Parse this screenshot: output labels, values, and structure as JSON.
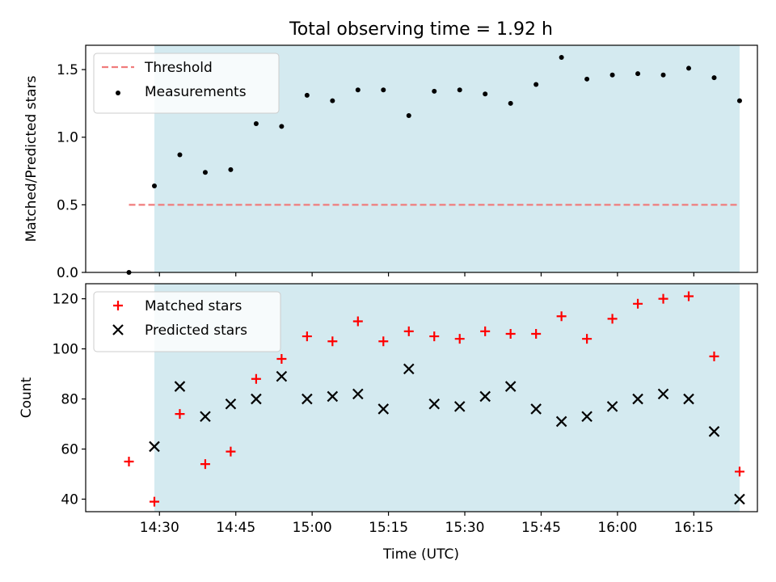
{
  "chart_data": {
    "title": "Total observing time = 1.92 h",
    "type": "scatter",
    "xlabel": "Time (UTC)",
    "x_ticks": [
      "14:30",
      "14:45",
      "15:00",
      "15:15",
      "15:30",
      "15:45",
      "16:00",
      "16:15"
    ],
    "x_tick_minutes": [
      870,
      885,
      900,
      915,
      930,
      945,
      960,
      975
    ],
    "xlim_minutes": [
      855.5,
      987.5
    ],
    "x_times": [
      "14:24",
      "14:29",
      "14:34",
      "14:39",
      "14:44",
      "14:49",
      "14:54",
      "14:59",
      "15:04",
      "15:09",
      "15:14",
      "15:19",
      "15:24",
      "15:29",
      "15:34",
      "15:39",
      "15:44",
      "15:49",
      "15:54",
      "15:59",
      "16:04",
      "16:09",
      "16:14",
      "16:19",
      "16:24"
    ],
    "shaded_span": {
      "start": "14:29",
      "end": "16:24",
      "color": "#d4eaf0"
    },
    "panels": [
      {
        "type": "scatter",
        "ylabel": "Matched/Predicted stars",
        "ylim": [
          0,
          1.68
        ],
        "y_ticks": [
          "0.0",
          "0.5",
          "1.0",
          "1.5"
        ],
        "legend": "top-left",
        "threshold": {
          "name": "Threshold",
          "value": 0.5,
          "x_start": "14:24",
          "x_end": "16:24",
          "color": "#f07c7c",
          "style": "dashed"
        },
        "series": [
          {
            "name": "Measurements",
            "color": "#000000",
            "marker": "dot",
            "values": [
              0.0,
              0.64,
              0.87,
              0.74,
              0.76,
              1.1,
              1.08,
              1.31,
              1.27,
              1.35,
              1.35,
              1.16,
              1.34,
              1.35,
              1.32,
              1.25,
              1.39,
              1.59,
              1.43,
              1.46,
              1.47,
              1.46,
              1.51,
              1.44,
              1.27
            ]
          }
        ]
      },
      {
        "type": "scatter",
        "ylabel": "Count",
        "ylim": [
          35,
          126
        ],
        "y_ticks": [
          "40",
          "60",
          "80",
          "100",
          "120"
        ],
        "legend": "top-left",
        "series": [
          {
            "name": "Matched stars",
            "color": "#ff0000",
            "marker": "plus",
            "values": [
              55,
              39,
              74,
              54,
              59,
              88,
              96,
              105,
              103,
              111,
              103,
              107,
              105,
              104,
              107,
              106,
              106,
              113,
              104,
              112,
              118,
              120,
              121,
              97,
              51
            ]
          },
          {
            "name": "Predicted stars",
            "color": "#000000",
            "marker": "x",
            "values": [
              null,
              61,
              85,
              73,
              78,
              80,
              89,
              80,
              81,
              82,
              76,
              92,
              78,
              77,
              81,
              85,
              76,
              71,
              73,
              77,
              80,
              82,
              80,
              67,
              40
            ]
          }
        ]
      }
    ]
  }
}
